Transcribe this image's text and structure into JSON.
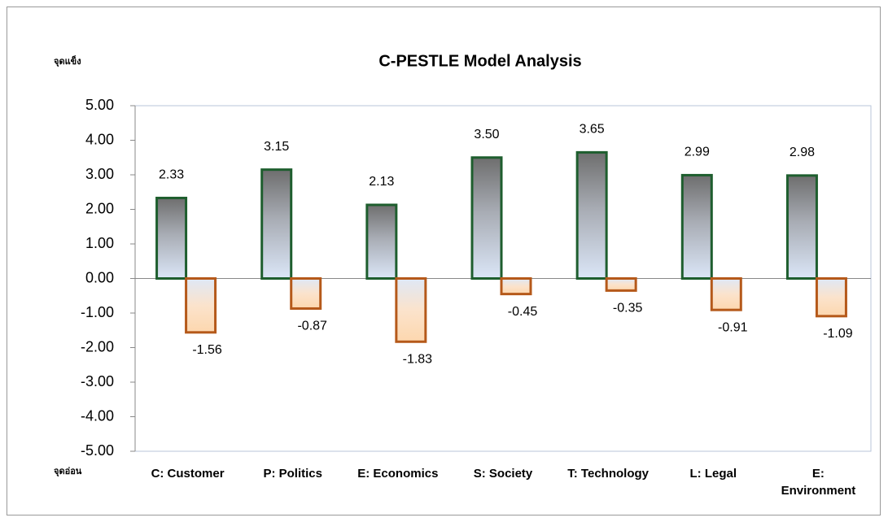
{
  "chart_data": {
    "type": "bar",
    "title": "C-PESTLE Model Analysis",
    "y_label_top": "จุดแข็ง",
    "y_label_bottom": "จุดอ่อน",
    "categories": [
      "C: Customer",
      "P: Politics",
      "E: Economics",
      "S: Society",
      "T: Technology",
      "L: Legal",
      "E: Environment"
    ],
    "series": [
      {
        "color": "#1e5e2e",
        "values": [
          2.33,
          3.15,
          2.13,
          3.5,
          3.65,
          2.99,
          2.98
        ],
        "value_labels": [
          "2.33",
          "3.15",
          "2.13",
          "3.50",
          "3.65",
          "2.99",
          "2.98"
        ]
      },
      {
        "color": "#b5591a",
        "values": [
          -1.56,
          -0.87,
          -1.83,
          -0.45,
          -0.35,
          -0.91,
          -1.09
        ],
        "value_labels": [
          "-1.56",
          "-0.87",
          "-1.83",
          "-0.45",
          "-0.35",
          "-0.91",
          "-1.09"
        ]
      }
    ],
    "ylim": [
      -5,
      5
    ],
    "yticks": [
      {
        "value": -5,
        "label": "-5.00"
      },
      {
        "value": -4,
        "label": "-4.00"
      },
      {
        "value": -3,
        "label": "-3.00"
      },
      {
        "value": -2,
        "label": "-2.00"
      },
      {
        "value": -1,
        "label": "-1.00"
      },
      {
        "value": 0,
        "label": "0.00"
      },
      {
        "value": 1,
        "label": "1.00"
      },
      {
        "value": 2,
        "label": "2.00"
      },
      {
        "value": 3,
        "label": "3.00"
      },
      {
        "value": 4,
        "label": "4.00"
      },
      {
        "value": 5,
        "label": "5.00"
      }
    ]
  }
}
